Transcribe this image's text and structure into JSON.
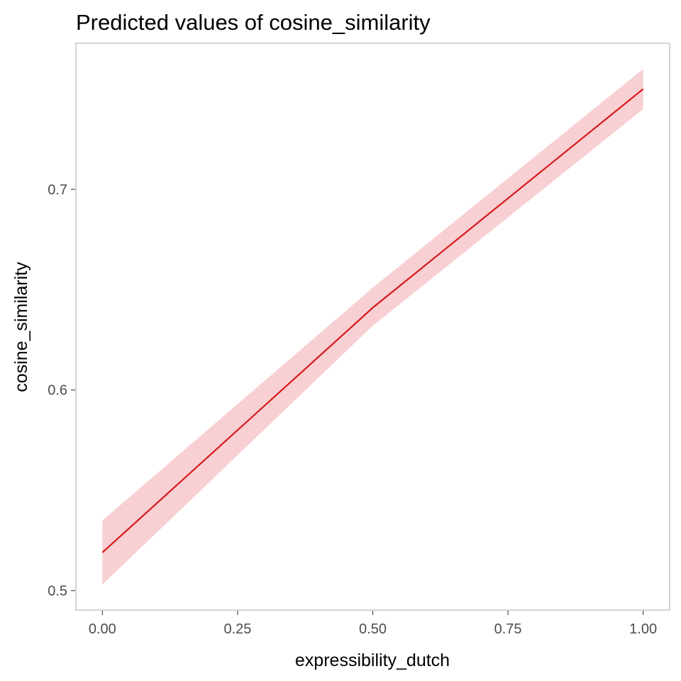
{
  "chart_data": {
    "type": "line",
    "title": "Predicted values of cosine_similarity",
    "xlabel": "expressibility_dutch",
    "ylabel": "cosine_similarity",
    "x_ticks": [
      {
        "value": 0.0,
        "label": "0.00"
      },
      {
        "value": 0.25,
        "label": "0.25"
      },
      {
        "value": 0.5,
        "label": "0.50"
      },
      {
        "value": 0.75,
        "label": "0.75"
      },
      {
        "value": 1.0,
        "label": "1.00"
      }
    ],
    "y_ticks": [
      {
        "value": 0.5,
        "label": "0.5"
      },
      {
        "value": 0.6,
        "label": "0.6"
      },
      {
        "value": 0.7,
        "label": "0.7"
      }
    ],
    "xlim": [
      -0.049,
      1.049
    ],
    "ylim": [
      0.4903,
      0.7728
    ],
    "grid": false,
    "series": [
      {
        "x": [
          0.0,
          0.5,
          1.0
        ],
        "y": [
          0.519,
          0.641,
          0.75
        ],
        "ci_low": [
          0.503,
          0.632,
          0.74
        ],
        "ci_high": [
          0.535,
          0.651,
          0.76
        ],
        "line_color": "#d7191c",
        "ribbon_color": "#f8d0d3"
      }
    ]
  }
}
